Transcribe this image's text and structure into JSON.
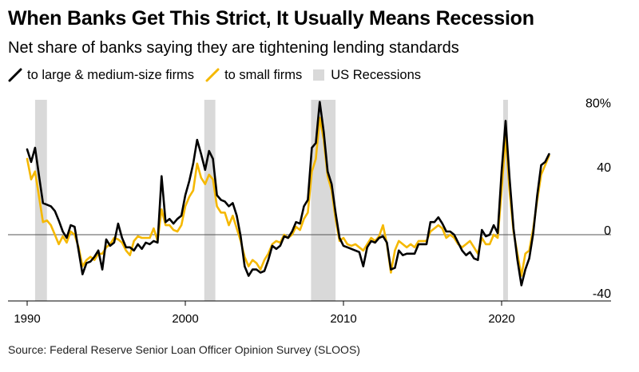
{
  "title": "When Banks Get This Strict, It Usually Means Recession",
  "subtitle": "Net share of banks saying they are tightening lending standards",
  "legend": {
    "large": "to large & medium-size firms",
    "small": "to small firms",
    "recession": "US Recessions"
  },
  "source": "Source: Federal Reserve Senior Loan Officer Opinion Survey (SLOOS)",
  "colors": {
    "large": "#000000",
    "small": "#f5b800",
    "recession": "#d9d9d9"
  },
  "chart_data": {
    "type": "line",
    "title": "When Banks Get This Strict, It Usually Means Recession",
    "subtitle": "Net share of banks saying they are tightening lending standards",
    "xlabel": "",
    "ylabel": "",
    "xlim": [
      1989.7,
      2027.0
    ],
    "ylim": [
      -48,
      87
    ],
    "yticks": [
      80,
      40,
      0,
      -40
    ],
    "ytick_labels": [
      "80%",
      "40",
      "0",
      "-40"
    ],
    "xticks": [
      1990,
      2000,
      2010,
      2020
    ],
    "xtick_labels": [
      "1990",
      "2000",
      "2010",
      "2020"
    ],
    "grid": false,
    "legend_position": "top-left",
    "recessions": [
      [
        1990.5,
        1991.25
      ],
      [
        2001.2,
        2001.9
      ],
      [
        2007.95,
        2009.5
      ],
      [
        2020.1,
        2020.4
      ]
    ],
    "series": [
      {
        "name": "to large & medium-size firms",
        "color": "#000000",
        "points": [
          [
            1990.0,
            54
          ],
          [
            1990.25,
            46
          ],
          [
            1990.5,
            55
          ],
          [
            1990.75,
            37
          ],
          [
            1991.0,
            20
          ],
          [
            1991.25,
            19
          ],
          [
            1991.5,
            18
          ],
          [
            1991.75,
            15
          ],
          [
            1992.0,
            9
          ],
          [
            1992.25,
            2
          ],
          [
            1992.5,
            -2
          ],
          [
            1992.75,
            6
          ],
          [
            1993.0,
            5
          ],
          [
            1993.25,
            -10
          ],
          [
            1993.5,
            -25
          ],
          [
            1993.75,
            -18
          ],
          [
            1994.0,
            -17
          ],
          [
            1994.25,
            -14
          ],
          [
            1994.5,
            -10
          ],
          [
            1994.75,
            -22
          ],
          [
            1995.0,
            -3
          ],
          [
            1995.25,
            -7
          ],
          [
            1995.5,
            -5
          ],
          [
            1995.75,
            7
          ],
          [
            1996.0,
            -2
          ],
          [
            1996.25,
            -8
          ],
          [
            1996.5,
            -8
          ],
          [
            1996.75,
            -10
          ],
          [
            1997.0,
            -6
          ],
          [
            1997.25,
            -9
          ],
          [
            1997.5,
            -5
          ],
          [
            1997.75,
            -6
          ],
          [
            1998.0,
            -4
          ],
          [
            1998.25,
            -5
          ],
          [
            1998.5,
            37
          ],
          [
            1998.75,
            8
          ],
          [
            1999.0,
            10
          ],
          [
            1999.25,
            7
          ],
          [
            1999.5,
            10
          ],
          [
            1999.75,
            12
          ],
          [
            2000.0,
            25
          ],
          [
            2000.25,
            34
          ],
          [
            2000.5,
            45
          ],
          [
            2000.75,
            60
          ],
          [
            2001.0,
            51
          ],
          [
            2001.25,
            41
          ],
          [
            2001.5,
            53
          ],
          [
            2001.75,
            48
          ],
          [
            2002.0,
            25
          ],
          [
            2002.25,
            22
          ],
          [
            2002.5,
            21
          ],
          [
            2002.75,
            18
          ],
          [
            2003.0,
            20
          ],
          [
            2003.25,
            12
          ],
          [
            2003.5,
            -1
          ],
          [
            2003.75,
            -20
          ],
          [
            2004.0,
            -26
          ],
          [
            2004.25,
            -22
          ],
          [
            2004.5,
            -22
          ],
          [
            2004.75,
            -24
          ],
          [
            2005.0,
            -23
          ],
          [
            2005.25,
            -16
          ],
          [
            2005.5,
            -7
          ],
          [
            2005.75,
            -9
          ],
          [
            2006.0,
            -7
          ],
          [
            2006.25,
            -1
          ],
          [
            2006.5,
            -2
          ],
          [
            2006.75,
            2
          ],
          [
            2007.0,
            8
          ],
          [
            2007.25,
            7
          ],
          [
            2007.5,
            18
          ],
          [
            2007.75,
            22
          ],
          [
            2008.0,
            55
          ],
          [
            2008.25,
            58
          ],
          [
            2008.5,
            84
          ],
          [
            2008.75,
            65
          ],
          [
            2009.0,
            40
          ],
          [
            2009.25,
            32
          ],
          [
            2009.5,
            14
          ],
          [
            2009.75,
            -2
          ],
          [
            2010.0,
            -7
          ],
          [
            2010.25,
            -8
          ],
          [
            2010.5,
            -9
          ],
          [
            2010.75,
            -10
          ],
          [
            2011.0,
            -11
          ],
          [
            2011.25,
            -20
          ],
          [
            2011.5,
            -8
          ],
          [
            2011.75,
            -4
          ],
          [
            2012.0,
            -5
          ],
          [
            2012.25,
            -2
          ],
          [
            2012.5,
            -1
          ],
          [
            2012.75,
            -5
          ],
          [
            2013.0,
            -22
          ],
          [
            2013.25,
            -21
          ],
          [
            2013.5,
            -10
          ],
          [
            2013.75,
            -13
          ],
          [
            2014.0,
            -12
          ],
          [
            2014.25,
            -12
          ],
          [
            2014.5,
            -12
          ],
          [
            2014.75,
            -6
          ],
          [
            2015.0,
            -6
          ],
          [
            2015.25,
            -6
          ],
          [
            2015.5,
            8
          ],
          [
            2015.75,
            8
          ],
          [
            2016.0,
            11
          ],
          [
            2016.25,
            7
          ],
          [
            2016.5,
            2
          ],
          [
            2016.75,
            2
          ],
          [
            2017.0,
            0
          ],
          [
            2017.25,
            -5
          ],
          [
            2017.5,
            -10
          ],
          [
            2017.75,
            -13
          ],
          [
            2018.0,
            -11
          ],
          [
            2018.25,
            -15
          ],
          [
            2018.5,
            -16
          ],
          [
            2018.75,
            3
          ],
          [
            2019.0,
            -1
          ],
          [
            2019.25,
            0
          ],
          [
            2019.5,
            6
          ],
          [
            2019.75,
            1
          ],
          [
            2020.0,
            40
          ],
          [
            2020.25,
            72
          ],
          [
            2020.5,
            36
          ],
          [
            2020.75,
            4
          ],
          [
            2021.0,
            -16
          ],
          [
            2021.25,
            -32
          ],
          [
            2021.5,
            -22
          ],
          [
            2021.75,
            -15
          ],
          [
            2022.0,
            1
          ],
          [
            2022.25,
            25
          ],
          [
            2022.5,
            44
          ],
          [
            2022.75,
            46
          ],
          [
            2023.0,
            51
          ]
        ]
      },
      {
        "name": "to small firms",
        "color": "#f5b800",
        "points": [
          [
            1990.0,
            48
          ],
          [
            1990.25,
            35
          ],
          [
            1990.5,
            40
          ],
          [
            1990.75,
            24
          ],
          [
            1991.0,
            8
          ],
          [
            1991.25,
            9
          ],
          [
            1991.5,
            6
          ],
          [
            1991.75,
            0
          ],
          [
            1992.0,
            -6
          ],
          [
            1992.25,
            -1
          ],
          [
            1992.5,
            -5
          ],
          [
            1992.75,
            2
          ],
          [
            1993.0,
            0
          ],
          [
            1993.25,
            -8
          ],
          [
            1993.5,
            -20
          ],
          [
            1993.75,
            -16
          ],
          [
            1994.0,
            -14
          ],
          [
            1994.25,
            -16
          ],
          [
            1994.5,
            -12
          ],
          [
            1994.75,
            -12
          ],
          [
            1995.0,
            -8
          ],
          [
            1995.25,
            -6
          ],
          [
            1995.5,
            -2
          ],
          [
            1995.75,
            -3
          ],
          [
            1996.0,
            -5
          ],
          [
            1996.25,
            -10
          ],
          [
            1996.5,
            -13
          ],
          [
            1996.75,
            -4
          ],
          [
            1997.0,
            -1
          ],
          [
            1997.25,
            -2
          ],
          [
            1997.5,
            -2
          ],
          [
            1997.75,
            -2
          ],
          [
            1998.0,
            4
          ],
          [
            1998.25,
            -4
          ],
          [
            1998.5,
            16
          ],
          [
            1998.75,
            6
          ],
          [
            1999.0,
            6
          ],
          [
            1999.25,
            3
          ],
          [
            1999.5,
            2
          ],
          [
            1999.75,
            6
          ],
          [
            2000.0,
            18
          ],
          [
            2000.25,
            24
          ],
          [
            2000.5,
            28
          ],
          [
            2000.75,
            45
          ],
          [
            2001.0,
            36
          ],
          [
            2001.25,
            32
          ],
          [
            2001.5,
            38
          ],
          [
            2001.75,
            35
          ],
          [
            2002.0,
            18
          ],
          [
            2002.25,
            14
          ],
          [
            2002.5,
            14
          ],
          [
            2002.75,
            6
          ],
          [
            2003.0,
            12
          ],
          [
            2003.25,
            4
          ],
          [
            2003.5,
            -4
          ],
          [
            2003.75,
            -14
          ],
          [
            2004.0,
            -20
          ],
          [
            2004.25,
            -16
          ],
          [
            2004.5,
            -18
          ],
          [
            2004.75,
            -22
          ],
          [
            2005.0,
            -16
          ],
          [
            2005.25,
            -12
          ],
          [
            2005.5,
            -6
          ],
          [
            2005.75,
            -4
          ],
          [
            2006.0,
            -5
          ],
          [
            2006.25,
            0
          ],
          [
            2006.5,
            -2
          ],
          [
            2006.75,
            0
          ],
          [
            2007.0,
            5
          ],
          [
            2007.25,
            3
          ],
          [
            2007.5,
            10
          ],
          [
            2007.75,
            14
          ],
          [
            2008.0,
            40
          ],
          [
            2008.25,
            48
          ],
          [
            2008.5,
            74
          ],
          [
            2008.75,
            60
          ],
          [
            2009.0,
            37
          ],
          [
            2009.25,
            28
          ],
          [
            2009.5,
            10
          ],
          [
            2009.75,
            -4
          ],
          [
            2010.0,
            -2
          ],
          [
            2010.25,
            -6
          ],
          [
            2010.5,
            -7
          ],
          [
            2010.75,
            -6
          ],
          [
            2011.0,
            -8
          ],
          [
            2011.25,
            -10
          ],
          [
            2011.5,
            -6
          ],
          [
            2011.75,
            -2
          ],
          [
            2012.0,
            -4
          ],
          [
            2012.25,
            -1
          ],
          [
            2012.5,
            6
          ],
          [
            2012.75,
            -6
          ],
          [
            2013.0,
            -24
          ],
          [
            2013.25,
            -10
          ],
          [
            2013.5,
            -4
          ],
          [
            2013.75,
            -6
          ],
          [
            2014.0,
            -8
          ],
          [
            2014.25,
            -6
          ],
          [
            2014.5,
            -8
          ],
          [
            2014.75,
            -4
          ],
          [
            2015.0,
            -4
          ],
          [
            2015.25,
            -4
          ],
          [
            2015.5,
            2
          ],
          [
            2015.75,
            4
          ],
          [
            2016.0,
            6
          ],
          [
            2016.25,
            4
          ],
          [
            2016.5,
            -2
          ],
          [
            2016.75,
            0
          ],
          [
            2017.0,
            -2
          ],
          [
            2017.25,
            -6
          ],
          [
            2017.5,
            -8
          ],
          [
            2017.75,
            -6
          ],
          [
            2018.0,
            -4
          ],
          [
            2018.25,
            -8
          ],
          [
            2018.5,
            -12
          ],
          [
            2018.75,
            -2
          ],
          [
            2019.0,
            -6
          ],
          [
            2019.25,
            -6
          ],
          [
            2019.5,
            0
          ],
          [
            2019.75,
            -2
          ],
          [
            2020.0,
            28
          ],
          [
            2020.25,
            62
          ],
          [
            2020.5,
            28
          ],
          [
            2020.75,
            2
          ],
          [
            2021.0,
            -12
          ],
          [
            2021.25,
            -26
          ],
          [
            2021.5,
            -12
          ],
          [
            2021.75,
            -10
          ],
          [
            2022.0,
            4
          ],
          [
            2022.25,
            22
          ],
          [
            2022.5,
            38
          ],
          [
            2022.75,
            44
          ],
          [
            2023.0,
            50
          ]
        ]
      }
    ]
  }
}
